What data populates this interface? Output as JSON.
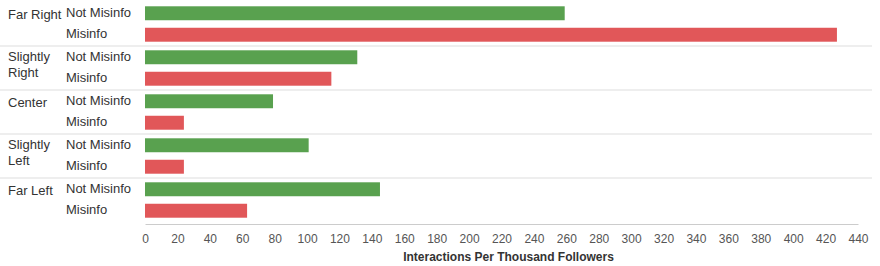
{
  "chart_data": {
    "type": "bar",
    "orientation": "horizontal",
    "x_label": "Interactions Per Thousand Followers",
    "categories": [
      "Far Right",
      "Slightly Right",
      "Center",
      "Slightly Left",
      "Far Left"
    ],
    "series": [
      {
        "name": "Not Misinfo",
        "color": "#59a14f",
        "values": [
          259,
          131,
          79,
          101,
          145
        ]
      },
      {
        "name": "Misinfo",
        "color": "#e15759",
        "values": [
          427,
          115,
          24,
          24,
          63
        ]
      }
    ],
    "xlim": [
      0,
      440
    ],
    "xticks": [
      0,
      20,
      40,
      60,
      80,
      100,
      120,
      140,
      160,
      180,
      200,
      220,
      240,
      260,
      280,
      300,
      320,
      340,
      360,
      380,
      400,
      420,
      440
    ],
    "grid": false
  }
}
